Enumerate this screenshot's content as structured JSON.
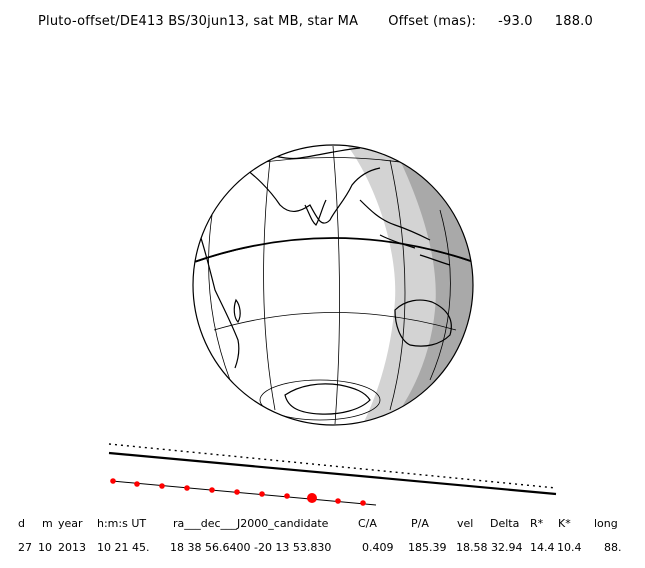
{
  "title": {
    "main": "Pluto-offset/DE413 BS/30jun13, sat MB, star MA",
    "offset_label": "Offset (mas):",
    "offset_x": "-93.0",
    "offset_y": "188.0"
  },
  "table": {
    "headers": [
      "d",
      "m",
      "year",
      "h:m:s UT",
      "ra___dec___J2000_candidate",
      "C/A",
      "P/A",
      "vel",
      "Delta",
      "R*",
      "K*",
      "long"
    ],
    "values": [
      "27",
      "10",
      "2013",
      "10 21 45.",
      "18 38 56.6400 -20 13 53.830",
      "0.409",
      "185.39",
      "18.58",
      "32.94",
      "14.4",
      "10.4",
      "88."
    ]
  },
  "map": {
    "subobserver_longitude_deg": 88,
    "subobserver_latitude_deg": -20,
    "colors": {
      "land": "#000000",
      "twilight": "#d3d3d3",
      "night": "#a9a9a9",
      "day": "#ffffff",
      "track_dots": "#ff0000"
    }
  }
}
